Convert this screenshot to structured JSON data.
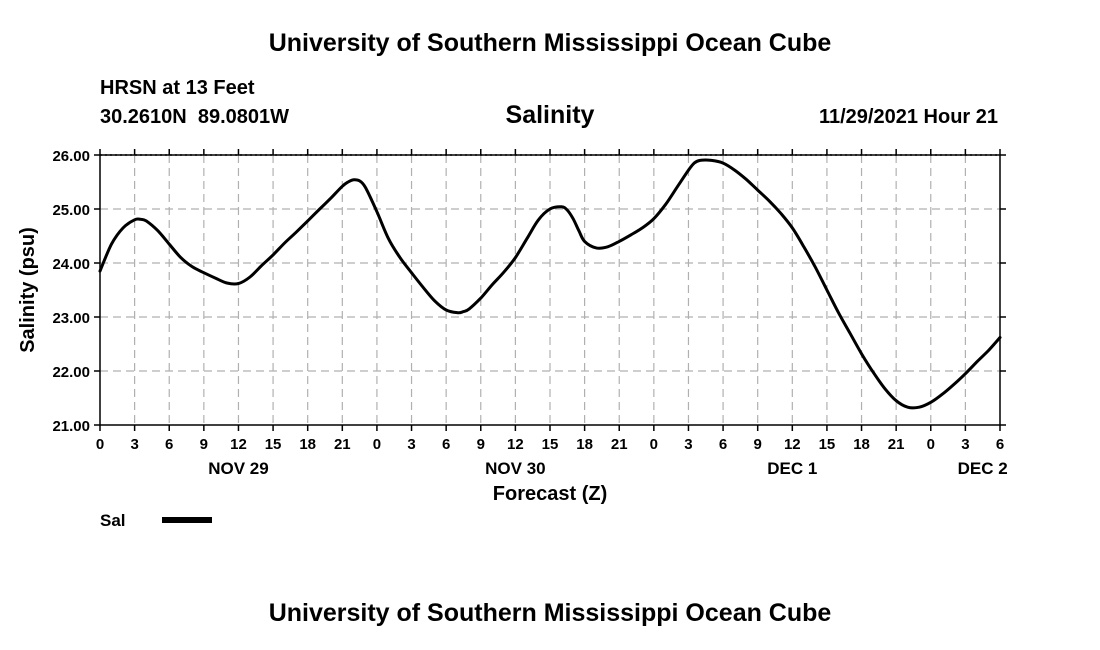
{
  "header": {
    "title": "University of Southern Mississippi Ocean Cube",
    "station": "HRSN at 13 Feet",
    "coords": "30.2610N  89.0801W",
    "datetime": "11/29/2021 Hour 21"
  },
  "footer": {
    "title": "University of Southern Mississippi Ocean Cube"
  },
  "colors": {
    "line": "#000000",
    "grid": "#b0b0b0",
    "axis": "#000000"
  },
  "chart_data": {
    "type": "line",
    "title": "Salinity",
    "xlabel": "Forecast (Z)",
    "ylabel": "Salinity (psu)",
    "xlim": [
      0,
      78
    ],
    "ylim": [
      21.0,
      26.0
    ],
    "x_tick_hours": [
      0,
      3,
      6,
      9,
      12,
      15,
      18,
      21,
      24,
      27,
      30,
      33,
      36,
      39,
      42,
      45,
      48,
      51,
      54,
      57,
      60,
      63,
      66,
      69,
      72,
      75,
      78
    ],
    "x_tick_labels": [
      "0",
      "3",
      "6",
      "9",
      "12",
      "15",
      "18",
      "21",
      "0",
      "3",
      "6",
      "9",
      "12",
      "15",
      "18",
      "21",
      "0",
      "3",
      "6",
      "9",
      "12",
      "15",
      "18",
      "21",
      "0",
      "3",
      "6"
    ],
    "y_ticks": [
      21.0,
      22.0,
      23.0,
      24.0,
      25.0,
      26.0
    ],
    "y_tick_labels": [
      "21.00",
      "22.00",
      "23.00",
      "24.00",
      "25.00",
      "26.00"
    ],
    "day_labels": [
      {
        "label": "NOV 29",
        "hour": 12
      },
      {
        "label": "NOV 30",
        "hour": 36
      },
      {
        "label": "DEC 1",
        "hour": 60
      },
      {
        "label": "DEC 2",
        "hour": 76.5
      }
    ],
    "grid": true,
    "legend": {
      "label": "Sal",
      "placement": "bottom-left"
    },
    "series": [
      {
        "name": "Sal",
        "x": [
          0,
          1,
          2,
          3,
          3.5,
          4,
          5,
          6,
          7,
          8,
          9,
          10,
          11,
          12,
          13,
          14,
          15,
          16,
          17,
          18,
          19,
          20,
          21,
          21.5,
          22,
          22.5,
          23,
          24,
          25,
          26,
          27,
          28,
          29,
          30,
          31,
          31.5,
          32,
          33,
          34,
          35,
          36,
          37,
          38,
          39,
          40,
          40.5,
          41,
          41.5,
          42,
          43,
          44,
          45,
          46,
          47,
          48,
          49,
          50,
          51,
          51.5,
          52,
          53,
          54,
          55,
          56,
          57,
          58,
          59,
          60,
          61,
          62,
          63,
          64,
          65,
          66,
          67,
          68,
          69,
          70,
          71,
          72,
          73,
          74,
          75,
          76,
          77,
          78
        ],
        "y": [
          23.85,
          24.35,
          24.65,
          24.8,
          24.81,
          24.78,
          24.6,
          24.35,
          24.1,
          23.93,
          23.82,
          23.72,
          23.63,
          23.62,
          23.74,
          23.95,
          24.15,
          24.37,
          24.57,
          24.78,
          24.99,
          25.2,
          25.42,
          25.5,
          25.54,
          25.52,
          25.4,
          24.95,
          24.45,
          24.1,
          23.82,
          23.55,
          23.3,
          23.13,
          23.08,
          23.1,
          23.15,
          23.35,
          23.6,
          23.83,
          24.1,
          24.45,
          24.8,
          25.0,
          25.04,
          24.98,
          24.82,
          24.6,
          24.4,
          24.28,
          24.3,
          24.4,
          24.52,
          24.65,
          24.82,
          25.08,
          25.4,
          25.72,
          25.85,
          25.9,
          25.9,
          25.85,
          25.72,
          25.55,
          25.35,
          25.15,
          24.92,
          24.65,
          24.3,
          23.92,
          23.5,
          23.08,
          22.7,
          22.32,
          21.98,
          21.68,
          21.45,
          21.33,
          21.33,
          21.42,
          21.57,
          21.75,
          21.95,
          22.17,
          22.38,
          22.62
        ]
      }
    ]
  }
}
